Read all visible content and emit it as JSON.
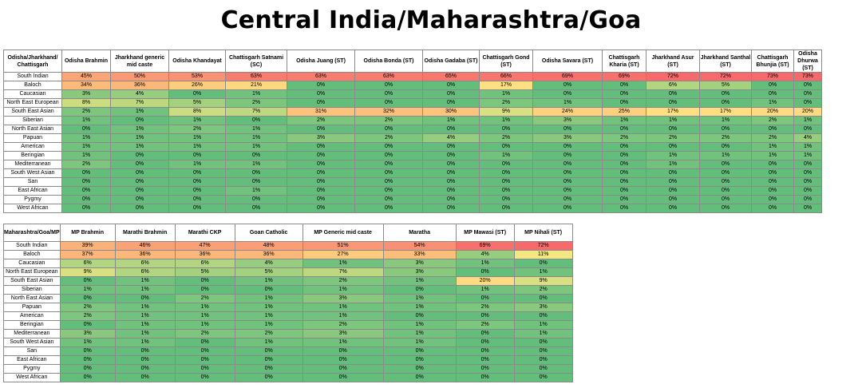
{
  "title": "Central India/Maharashtra/Goa",
  "chart_data": [
    {
      "type": "heatmap",
      "corner_label": "Odisha/Jharkhand/ Chattisgarh",
      "columns": [
        "Odisha Brahmin",
        "Jharkhand generic mid caste",
        "Odisha Khandayat",
        "Chattisgarh Satnami (SC)",
        "Odisha Juang (ST)",
        "Odisha Bonda (ST)",
        "Odisha Gadaba (ST)",
        "Chattisgarh Gond (ST)",
        "Odisha Savara (ST)",
        "Chattisgarh Kharia (ST)",
        "Jharkhand Asur (ST)",
        "Jharkhand Santhal (ST)",
        "Chattisgarh Bhunjia (ST)",
        "Odisha Dhurwa (ST)"
      ],
      "rows": [
        "South Indian",
        "Baloch",
        "Caucasian",
        "North East European",
        "South East Asian",
        "Siberian",
        "North East Asian",
        "Papuan",
        "American",
        "Beringian",
        "Mediterranean",
        "South West Asian",
        "San",
        "East African",
        "Pygmy",
        "West African"
      ],
      "values": [
        [
          45,
          50,
          53,
          63,
          63,
          63,
          65,
          66,
          69,
          69,
          72,
          72,
          73,
          73
        ],
        [
          34,
          36,
          26,
          21,
          0,
          0,
          0,
          17,
          0,
          0,
          6,
          5,
          0,
          0
        ],
        [
          3,
          4,
          0,
          1,
          0,
          0,
          0,
          1,
          0,
          0,
          0,
          0,
          0,
          0
        ],
        [
          8,
          7,
          5,
          2,
          0,
          0,
          0,
          2,
          1,
          0,
          0,
          0,
          1,
          0
        ],
        [
          2,
          1,
          8,
          7,
          31,
          32,
          30,
          9,
          24,
          25,
          17,
          17,
          20,
          20
        ],
        [
          1,
          0,
          1,
          0,
          2,
          2,
          1,
          1,
          3,
          1,
          1,
          1,
          2,
          1
        ],
        [
          0,
          1,
          2,
          1,
          0,
          0,
          0,
          0,
          0,
          0,
          0,
          0,
          0,
          0
        ],
        [
          1,
          1,
          1,
          1,
          3,
          2,
          4,
          2,
          3,
          2,
          2,
          2,
          2,
          4
        ],
        [
          1,
          1,
          1,
          1,
          0,
          0,
          0,
          0,
          0,
          0,
          0,
          0,
          1,
          1
        ],
        [
          1,
          0,
          0,
          0,
          0,
          0,
          0,
          1,
          0,
          0,
          1,
          1,
          1,
          1
        ],
        [
          2,
          0,
          1,
          1,
          0,
          0,
          0,
          0,
          0,
          0,
          1,
          0,
          0,
          0
        ],
        [
          0,
          0,
          0,
          0,
          0,
          0,
          0,
          0,
          0,
          0,
          0,
          0,
          0,
          0
        ],
        [
          0,
          0,
          0,
          0,
          0,
          0,
          0,
          0,
          0,
          0,
          0,
          0,
          0,
          0
        ],
        [
          0,
          0,
          0,
          1,
          0,
          0,
          0,
          0,
          0,
          0,
          0,
          0,
          0,
          0
        ],
        [
          0,
          0,
          0,
          0,
          0,
          0,
          0,
          0,
          0,
          0,
          0,
          0,
          0,
          0
        ],
        [
          0,
          0,
          0,
          0,
          0,
          0,
          0,
          0,
          0,
          0,
          0,
          0,
          0,
          0
        ]
      ]
    },
    {
      "type": "heatmap",
      "corner_label": "Maharashtra/Goa/MP",
      "columns": [
        "MP Brahmin",
        "Marathi Brahmin",
        "Marathi CKP",
        "Goan Catholic",
        "MP Generic mid caste",
        "Maratha",
        "MP Mawasi (ST)",
        "MP Nihali (ST)"
      ],
      "rows": [
        "South Indian",
        "Baloch",
        "Caucasian",
        "North East European",
        "South East Asian",
        "Siberian",
        "North East Asian",
        "Papuan",
        "American",
        "Beringian",
        "Mediterranean",
        "South West Asian",
        "San",
        "East African",
        "Pygmy",
        "West African"
      ],
      "values": [
        [
          39,
          46,
          47,
          48,
          51,
          54,
          69,
          72
        ],
        [
          37,
          36,
          36,
          36,
          27,
          33,
          4,
          11
        ],
        [
          6,
          6,
          6,
          4,
          1,
          3,
          1,
          0
        ],
        [
          9,
          6,
          5,
          5,
          7,
          3,
          0,
          1
        ],
        [
          0,
          1,
          0,
          1,
          2,
          1,
          20,
          9
        ],
        [
          1,
          1,
          0,
          0,
          1,
          0,
          1,
          2
        ],
        [
          0,
          0,
          2,
          1,
          3,
          1,
          0,
          0
        ],
        [
          2,
          1,
          1,
          1,
          1,
          1,
          2,
          3
        ],
        [
          2,
          1,
          1,
          1,
          1,
          0,
          0,
          0
        ],
        [
          0,
          1,
          1,
          1,
          2,
          1,
          2,
          1
        ],
        [
          3,
          1,
          2,
          2,
          3,
          1,
          0,
          1
        ],
        [
          1,
          1,
          0,
          1,
          1,
          1,
          0,
          0
        ],
        [
          0,
          0,
          0,
          0,
          0,
          0,
          0,
          0
        ],
        [
          0,
          0,
          0,
          0,
          0,
          0,
          0,
          0
        ],
        [
          0,
          0,
          0,
          0,
          0,
          0,
          0,
          0
        ],
        [
          0,
          0,
          0,
          0,
          0,
          0,
          0,
          0
        ]
      ]
    }
  ],
  "colors": {
    "low": "#63be7b",
    "mid": "#ffeb84",
    "high": "#f8696b"
  }
}
